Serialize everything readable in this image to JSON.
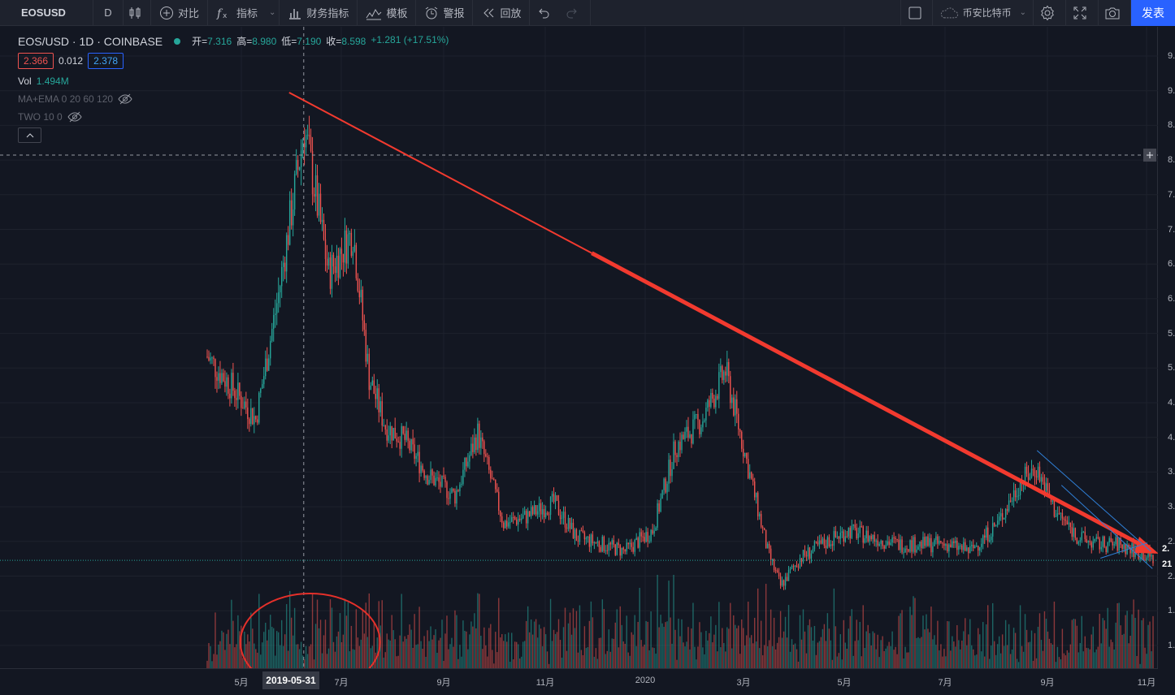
{
  "toolbar": {
    "symbol": "EOSUSD",
    "interval": "D",
    "compare": "对比",
    "indicators": "指标",
    "financials": "财务指标",
    "templates": "模板",
    "alert": "警报",
    "replay": "回放",
    "currency": "币安比特币",
    "publish": "发表"
  },
  "legend": {
    "symbol": "EOS/USD · 1D · COINBASE",
    "open_label": "开=",
    "open": "7.316",
    "high_label": "高=",
    "high": "8.980",
    "low_label": "低=",
    "low": "7.190",
    "close_label": "收=",
    "close": "8.598",
    "change": "+1.281 (+17.51%)",
    "bid": "2.366",
    "spread": "0.012",
    "ask": "2.378",
    "volume_label": "Vol",
    "volume_value": "1.494M",
    "indicator_1": "MA+EMA 0 20 60 120",
    "indicator_2": "TWO 10 0"
  },
  "time_axis": {
    "labels": [
      "5月",
      "7月",
      "9月",
      "11月",
      "2020",
      "3月",
      "5月",
      "7月",
      "9月",
      "11月"
    ],
    "crosshair_date": "2019-05-31"
  },
  "price_axis": {
    "labels": [
      "9.",
      "9.",
      "8.",
      "8.",
      "7.",
      "7.",
      "6.",
      "6.",
      "5.",
      "5.",
      "4.",
      "4.",
      "3.",
      "3.",
      "2.",
      "2.",
      "1.",
      "1."
    ],
    "last_price_tag": "2.",
    "countdown_tag": "21"
  },
  "colors": {
    "up": "#26a69a",
    "down": "#ef5350",
    "trendline": "#f23a2f",
    "wedge": "#2f7fd6",
    "accent": "#2962ff",
    "background": "#131722"
  },
  "chart_data": {
    "type": "candlestick",
    "symbol": "EOS/USD",
    "timeframe": "1D",
    "exchange": "COINBASE",
    "x_range": [
      "2019-04-01",
      "2020-11-05"
    ],
    "y_range": [
      1.5,
      9.5
    ],
    "series": [
      {
        "name": "price",
        "x": [
          "2019-04-01",
          "2019-04-15",
          "2019-05-01",
          "2019-05-15",
          "2019-05-31",
          "2019-06-15",
          "2019-06-30",
          "2019-07-10",
          "2019-07-20",
          "2019-08-01",
          "2019-08-15",
          "2019-09-01",
          "2019-09-15",
          "2019-10-01",
          "2019-10-15",
          "2019-11-01",
          "2019-11-15",
          "2019-12-01",
          "2019-12-15",
          "2020-01-01",
          "2020-01-15",
          "2020-02-01",
          "2020-02-15",
          "2020-03-01",
          "2020-03-12",
          "2020-03-20",
          "2020-04-01",
          "2020-04-15",
          "2020-05-01",
          "2020-05-15",
          "2020-06-01",
          "2020-06-15",
          "2020-07-01",
          "2020-07-15",
          "2020-08-01",
          "2020-08-15",
          "2020-08-25",
          "2020-09-05",
          "2020-09-20",
          "2020-10-01",
          "2020-10-15",
          "2020-11-05"
        ],
        "values": [
          5.3,
          4.9,
          4.4,
          6.2,
          8.6,
          6.5,
          7.1,
          5.0,
          4.3,
          4.1,
          3.6,
          3.3,
          4.2,
          2.9,
          3.0,
          3.2,
          2.7,
          2.6,
          2.5,
          2.8,
          4.0,
          4.4,
          5.1,
          3.6,
          2.5,
          2.0,
          2.4,
          2.6,
          2.8,
          2.7,
          2.6,
          2.6,
          2.6,
          2.5,
          2.9,
          3.5,
          3.7,
          3.1,
          2.7,
          2.6,
          2.6,
          2.4
        ]
      }
    ],
    "annotations": [
      {
        "type": "trendline",
        "from": [
          "2019-05-22",
          9.1
        ],
        "to": [
          "2020-11-05",
          2.5
        ]
      },
      {
        "type": "falling-wedge",
        "from": "2020-08-25",
        "to": "2020-11-01"
      },
      {
        "type": "circle",
        "at": "2019-05-31",
        "target": "volume"
      },
      {
        "type": "horizontal-line",
        "value": 8.2
      },
      {
        "type": "horizontal-line",
        "value": 2.37
      }
    ],
    "volume": {
      "name": "Vol",
      "last": "1.494M"
    }
  }
}
